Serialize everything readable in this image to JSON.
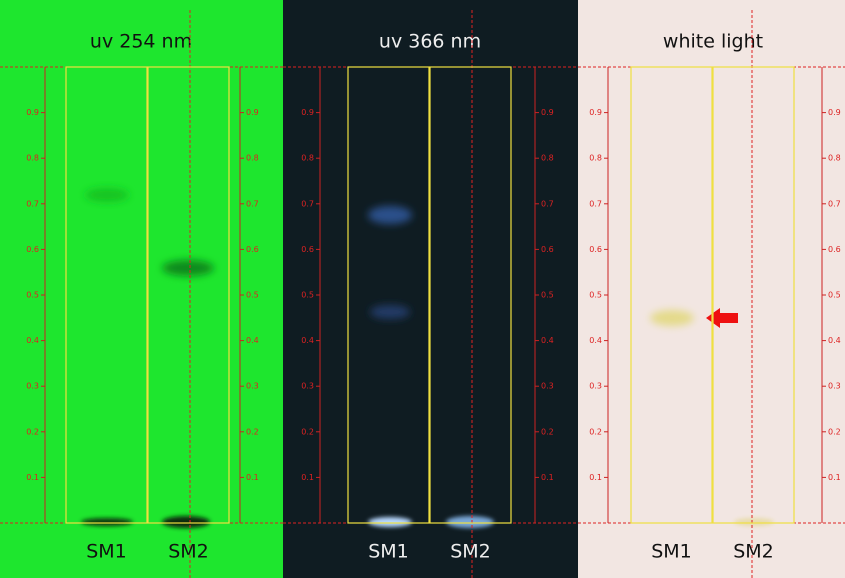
{
  "panels": [
    {
      "title": "uv 254 nm",
      "lanes": [
        "SM1",
        "SM2"
      ]
    },
    {
      "title": "uv 366 nm",
      "lanes": [
        "SM1",
        "SM2"
      ]
    },
    {
      "title": "white light",
      "lanes": [
        "SM1",
        "SM2"
      ]
    }
  ],
  "rf_ticks": [
    0.1,
    0.2,
    0.3,
    0.4,
    0.5,
    0.6,
    0.7,
    0.8,
    0.9
  ]
}
